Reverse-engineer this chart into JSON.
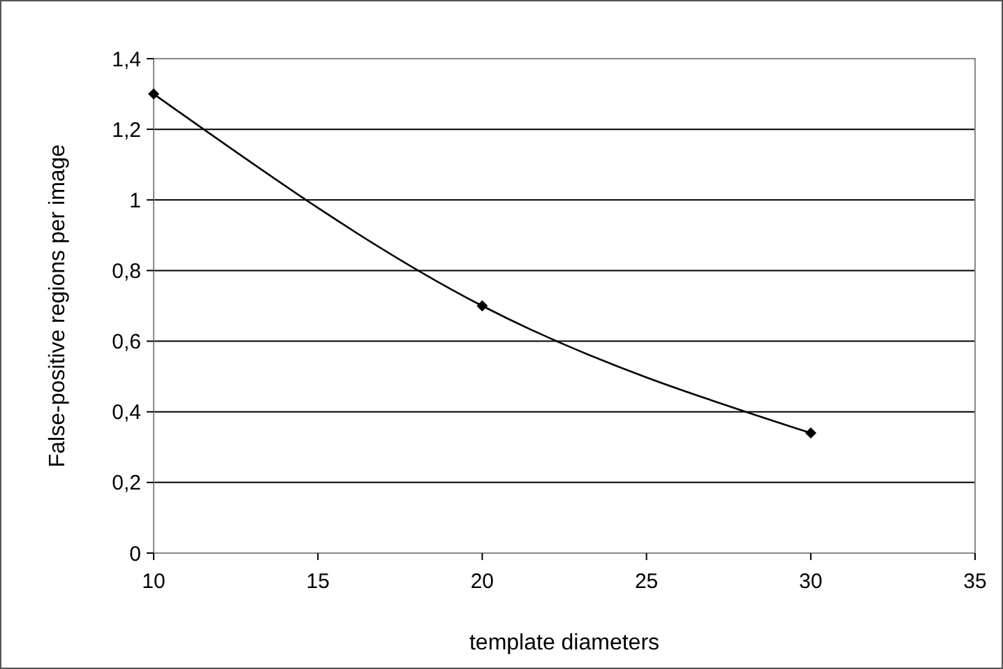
{
  "chart_data": {
    "type": "line",
    "xlabel": "template diameters",
    "ylabel": "False-positive regions per image",
    "x": [
      10,
      20,
      30
    ],
    "series": [
      {
        "color": "#000000",
        "values": [
          1.3,
          0.7,
          0.34
        ]
      }
    ],
    "xlim": [
      10,
      35
    ],
    "xticks": [
      10,
      15,
      20,
      25,
      30,
      35
    ],
    "ylim": [
      0,
      1.4
    ],
    "yticks": [
      0,
      {
        "value": 0.2,
        "label": "0,2"
      },
      {
        "value": 0.4,
        "label": "0,4"
      },
      {
        "value": 0.6,
        "label": "0,6"
      },
      {
        "value": 0.8,
        "label": "0,8"
      },
      1,
      {
        "value": 1.2,
        "label": "1,2"
      },
      {
        "value": 1.4,
        "label": "1,4"
      }
    ],
    "grid": "y",
    "marker": "diamond",
    "line_style": "solid"
  }
}
